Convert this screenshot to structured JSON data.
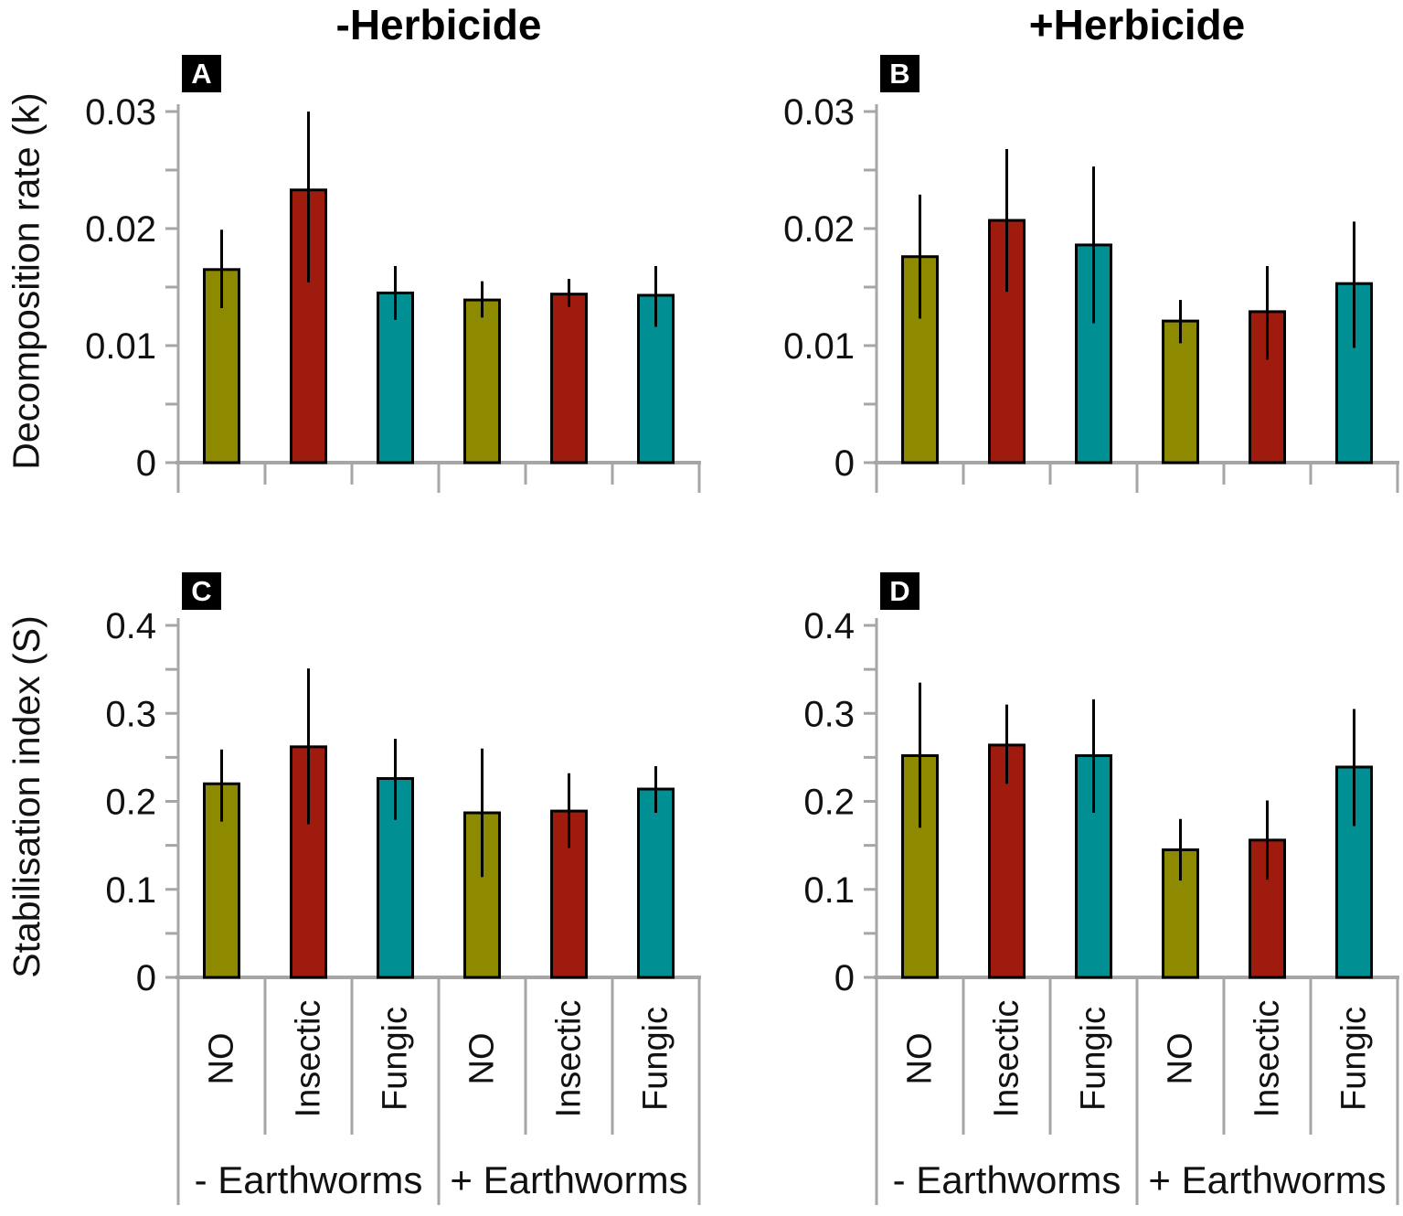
{
  "figure": {
    "column_titles": [
      "-Herbicide",
      "+Herbicide"
    ],
    "row_ylabels": [
      "Decomposition rate (k)",
      "Stabilisation index (S)"
    ],
    "panel_badges": [
      "A",
      "B",
      "C",
      "D"
    ]
  },
  "colors": {
    "bar_fills": [
      "#8E8A00",
      "#9E1B0E",
      "#009094"
    ],
    "bar_border": "#000000",
    "error_bar": "#000000",
    "axis_gray": "#A6A6A6",
    "text": "#111111",
    "badge_bg": "#000000",
    "badge_fg": "#FFFFFF"
  },
  "chart_data": [
    {
      "type": "bar",
      "panel": "A",
      "column_title": "-Herbicide",
      "ylabel": "Decomposition rate (k)",
      "categories": [
        "NO",
        "Insectic",
        "Fungic",
        "NO",
        "Insectic",
        "Fungic"
      ],
      "groups": [
        "- Earthworms",
        "+ Earthworms"
      ],
      "values": [
        0.0165,
        0.0233,
        0.0145,
        0.0139,
        0.0144,
        0.0143
      ],
      "error_low": [
        0.0132,
        0.0154,
        0.0122,
        0.0124,
        0.0133,
        0.0116
      ],
      "error_high": [
        0.0199,
        0.03,
        0.0168,
        0.0155,
        0.0157,
        0.0168
      ],
      "ylim": [
        0,
        0.03
      ],
      "yticks": [
        0,
        0.01,
        0.02,
        0.03
      ],
      "ytick_labels": [
        "0",
        "0.01",
        "0.02",
        "0.03"
      ],
      "minor_step": 0.005,
      "grid": false,
      "legend": false,
      "show_category_labels": false
    },
    {
      "type": "bar",
      "panel": "B",
      "column_title": "+Herbicide",
      "ylabel": "Decomposition rate (k)",
      "categories": [
        "NO",
        "Insectic",
        "Fungic",
        "NO",
        "Insectic",
        "Fungic"
      ],
      "groups": [
        "- Earthworms",
        "+ Earthworms"
      ],
      "values": [
        0.0176,
        0.0207,
        0.0186,
        0.0121,
        0.0129,
        0.0153
      ],
      "error_low": [
        0.0123,
        0.0146,
        0.0119,
        0.0102,
        0.0088,
        0.0098
      ],
      "error_high": [
        0.0229,
        0.0268,
        0.0253,
        0.0139,
        0.0168,
        0.0206
      ],
      "ylim": [
        0,
        0.03
      ],
      "yticks": [
        0,
        0.01,
        0.02,
        0.03
      ],
      "ytick_labels": [
        "0",
        "0.01",
        "0.02",
        "0.03"
      ],
      "minor_step": 0.005,
      "grid": false,
      "legend": false,
      "show_category_labels": false
    },
    {
      "type": "bar",
      "panel": "C",
      "column_title": "-Herbicide",
      "ylabel": "Stabilisation index (S)",
      "categories": [
        "NO",
        "Insectic",
        "Fungic",
        "NO",
        "Insectic",
        "Fungic"
      ],
      "groups": [
        "- Earthworms",
        "+ Earthworms"
      ],
      "values": [
        0.22,
        0.262,
        0.226,
        0.187,
        0.189,
        0.214
      ],
      "error_low": [
        0.177,
        0.174,
        0.179,
        0.114,
        0.147,
        0.187
      ],
      "error_high": [
        0.259,
        0.351,
        0.271,
        0.26,
        0.232,
        0.24
      ],
      "ylim": [
        0,
        0.4
      ],
      "yticks": [
        0,
        0.1,
        0.2,
        0.3,
        0.4
      ],
      "ytick_labels": [
        "0",
        "0.1",
        "0.2",
        "0.3",
        "0.4"
      ],
      "minor_step": 0.05,
      "grid": false,
      "legend": false,
      "show_category_labels": true
    },
    {
      "type": "bar",
      "panel": "D",
      "column_title": "+Herbicide",
      "ylabel": "Stabilisation index (S)",
      "categories": [
        "NO",
        "Insectic",
        "Fungic",
        "NO",
        "Insectic",
        "Fungic"
      ],
      "groups": [
        "- Earthworms",
        "+ Earthworms"
      ],
      "values": [
        0.252,
        0.264,
        0.252,
        0.145,
        0.156,
        0.239
      ],
      "error_low": [
        0.17,
        0.22,
        0.187,
        0.11,
        0.111,
        0.172
      ],
      "error_high": [
        0.335,
        0.31,
        0.316,
        0.18,
        0.201,
        0.305
      ],
      "ylim": [
        0,
        0.4
      ],
      "yticks": [
        0,
        0.1,
        0.2,
        0.3,
        0.4
      ],
      "ytick_labels": [
        "0",
        "0.1",
        "0.2",
        "0.3",
        "0.4"
      ],
      "minor_step": 0.05,
      "grid": false,
      "legend": false,
      "show_category_labels": true
    }
  ]
}
